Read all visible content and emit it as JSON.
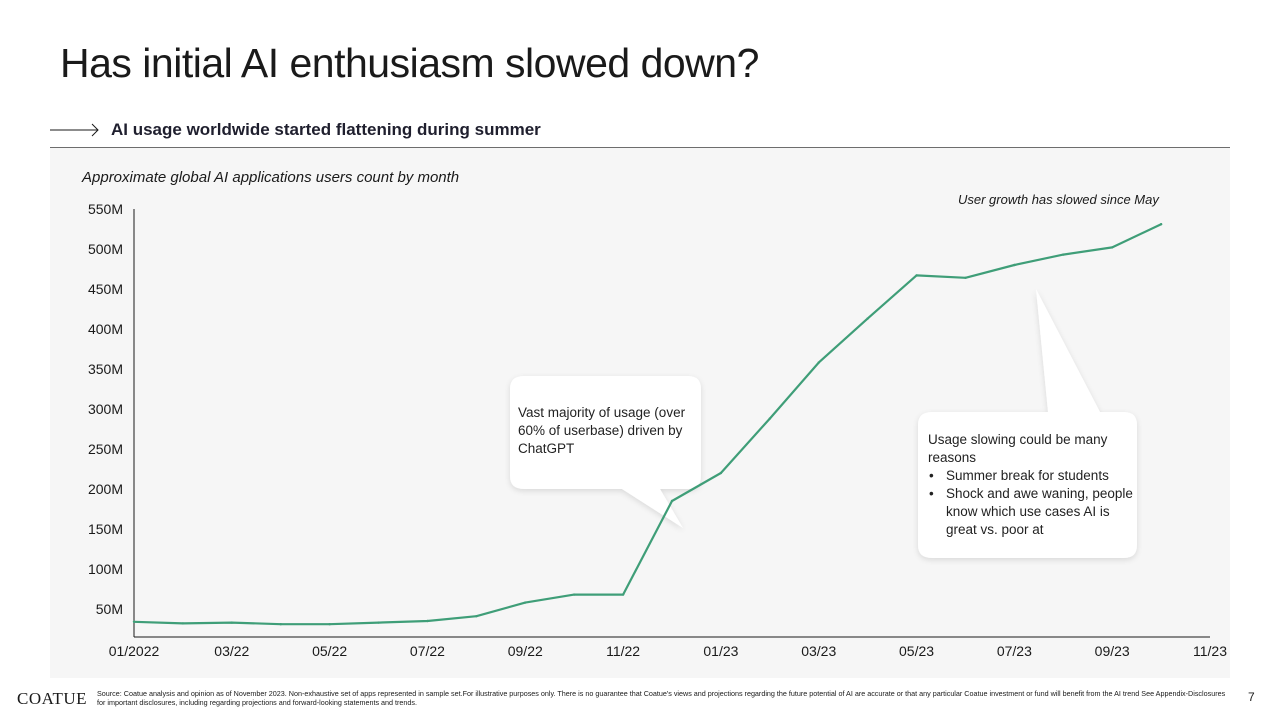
{
  "slide": {
    "title": "Has initial AI enthusiasm slowed down?",
    "subtitle": "AI usage worldwide started flattening during summer",
    "page_number": "7"
  },
  "footer": {
    "logo": "COATUE",
    "source": "Source: Coatue analysis and opinion as of November 2023. Non-exhaustive set of apps represented in sample set.For illustrative purposes only. There is no guarantee that Coatue's views and projections regarding the future potential of AI are accurate or that any particular Coatue investment or fund will benefit from the AI trend See Appendix-Disclosures for important disclosures, including regarding projections and forward-looking statements and trends."
  },
  "callouts": {
    "chatgpt": "Vast majority of usage (over 60% of userbase) driven by ChatGPT",
    "slowing_intro": "Usage slowing could be many reasons",
    "slowing_bullets": [
      "Summer break for students",
      "Shock and awe waning, people know which use cases AI is great vs. poor at"
    ],
    "top_note": "User growth has slowed since May"
  },
  "colors": {
    "line": "#3f9e78",
    "panel": "#f6f6f6",
    "axis": "#1a1a1a"
  },
  "chart_data": {
    "type": "line",
    "title": "Approximate global AI applications users count by month",
    "xlabel": "",
    "ylabel": "",
    "x_tick_labels": [
      "01/2022",
      "03/22",
      "05/22",
      "07/22",
      "09/22",
      "11/22",
      "01/23",
      "03/23",
      "05/23",
      "07/23",
      "09/23",
      "11/23"
    ],
    "y_tick_labels": [
      "50M",
      "100M",
      "150M",
      "200M",
      "250M",
      "300M",
      "350M",
      "400M",
      "450M",
      "500M",
      "550M"
    ],
    "y_ticks": [
      50,
      100,
      150,
      200,
      250,
      300,
      350,
      400,
      450,
      500,
      550
    ],
    "ylim": [
      15,
      550
    ],
    "grid": false,
    "series": [
      {
        "x": [
          "01/2022",
          "02/2022",
          "03/2022",
          "04/2022",
          "05/2022",
          "06/2022",
          "07/2022",
          "08/2022",
          "09/2022",
          "10/2022",
          "11/2022",
          "12/2022",
          "01/2023",
          "02/2023",
          "03/2023",
          "04/2023",
          "05/2023",
          "06/2023",
          "07/2023",
          "08/2023",
          "09/2023",
          "10/2023"
        ],
        "values": [
          34,
          32,
          33,
          31,
          31,
          33,
          35,
          41,
          58,
          68,
          68,
          185,
          220,
          288,
          358,
          413,
          467,
          464,
          480,
          493,
          502,
          531
        ]
      }
    ]
  }
}
